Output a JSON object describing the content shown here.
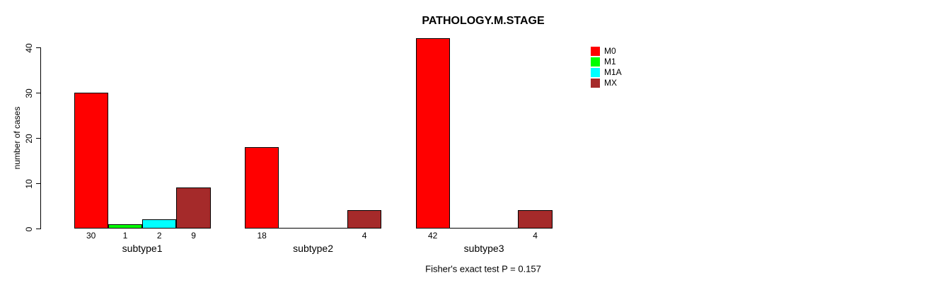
{
  "chart_data": {
    "type": "bar",
    "title": "PATHOLOGY.M.STAGE",
    "ylabel": "number of cases",
    "xlabel": "",
    "footnote": "Fisher's exact test P = 0.157",
    "categories": [
      "subtype1",
      "subtype2",
      "subtype3"
    ],
    "series": [
      {
        "name": "M0",
        "color": "#FF0000",
        "values": [
          30,
          18,
          42
        ]
      },
      {
        "name": "M1",
        "color": "#00FF00",
        "values": [
          1,
          0,
          0
        ]
      },
      {
        "name": "M1A",
        "color": "#00FFFF",
        "values": [
          2,
          0,
          0
        ]
      },
      {
        "name": "MX",
        "color": "#A52A2A",
        "values": [
          9,
          4,
          4
        ]
      }
    ],
    "yticks": [
      0,
      10,
      20,
      30,
      40
    ],
    "ylim": [
      0,
      40
    ],
    "grid": false,
    "legend_position": "top-right",
    "bar_value_labels": true,
    "background_color": "#FFFFFF"
  }
}
